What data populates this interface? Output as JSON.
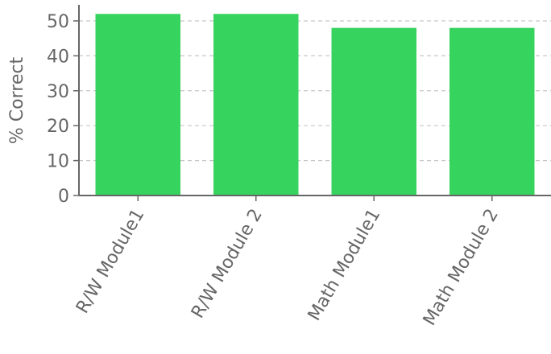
{
  "chart_data": {
    "type": "bar",
    "title": "",
    "xlabel": "",
    "ylabel": "% Correct",
    "categories": [
      "R/W Module1",
      "R/W Module 2",
      "Math Module1",
      "Math Module 2"
    ],
    "values": [
      52,
      52,
      48,
      48
    ],
    "yticks": [
      0,
      10,
      20,
      30,
      40,
      50
    ],
    "ylim": [
      0,
      54.6
    ],
    "grid": "horizontal dashed",
    "legend": "none",
    "colors": {
      "bar": "#36d35f",
      "axis": "#666666",
      "grid": "#c8c8c8",
      "text": "#666666"
    }
  }
}
